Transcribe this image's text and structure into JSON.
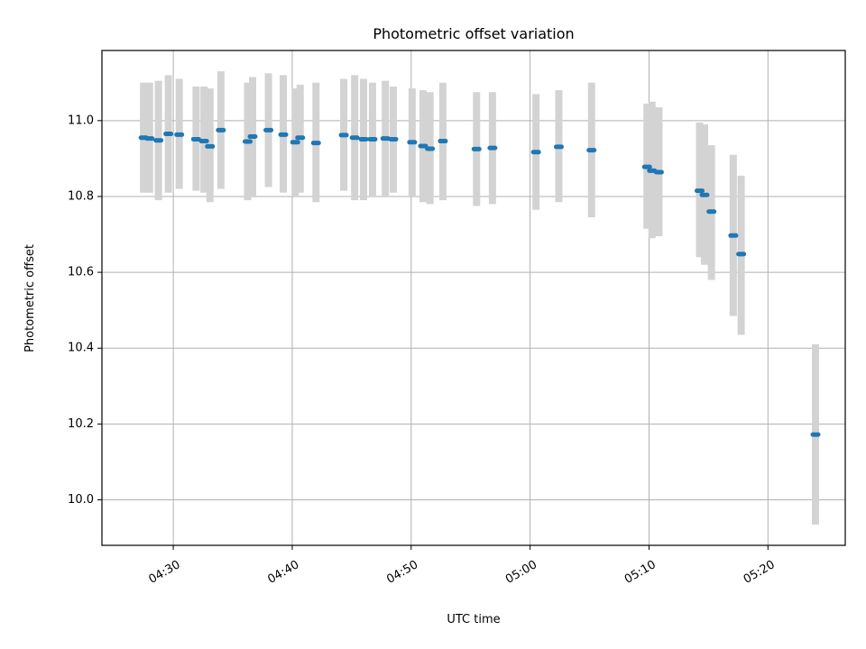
{
  "chart_data": {
    "type": "scatter",
    "title": "Photometric offset variation",
    "xlabel": "UTC time",
    "ylabel": "Photometric offset",
    "xlim": [
      "04:24:00",
      "05:26:30"
    ],
    "ylim": [
      9.88,
      11.185
    ],
    "grid": true,
    "x_ticks": [
      "04:30",
      "04:40",
      "04:50",
      "05:00",
      "05:10",
      "05:20"
    ],
    "y_ticks": [
      "10.0",
      "10.2",
      "10.4",
      "10.6",
      "10.8",
      "11.0"
    ],
    "marker_color": "#1f77b4",
    "errorbar_color": "#d3d3d3",
    "points": [
      {
        "time": "04:27:30",
        "offset": 10.955,
        "err_low": 10.81,
        "err_high": 11.1
      },
      {
        "time": "04:28:00",
        "offset": 10.953,
        "err_low": 10.81,
        "err_high": 11.1
      },
      {
        "time": "04:28:45",
        "offset": 10.948,
        "err_low": 10.79,
        "err_high": 11.105
      },
      {
        "time": "04:29:35",
        "offset": 10.965,
        "err_low": 10.81,
        "err_high": 11.12
      },
      {
        "time": "04:30:30",
        "offset": 10.963,
        "err_low": 10.82,
        "err_high": 11.11
      },
      {
        "time": "04:31:55",
        "offset": 10.951,
        "err_low": 10.815,
        "err_high": 11.09
      },
      {
        "time": "04:32:35",
        "offset": 10.946,
        "err_low": 10.81,
        "err_high": 11.09
      },
      {
        "time": "04:33:05",
        "offset": 10.932,
        "err_low": 10.785,
        "err_high": 11.085
      },
      {
        "time": "04:34:00",
        "offset": 10.975,
        "err_low": 10.82,
        "err_high": 11.13
      },
      {
        "time": "04:36:15",
        "offset": 10.945,
        "err_low": 10.79,
        "err_high": 11.1
      },
      {
        "time": "04:36:40",
        "offset": 10.958,
        "err_low": 10.8,
        "err_high": 11.115
      },
      {
        "time": "04:38:00",
        "offset": 10.975,
        "err_low": 10.825,
        "err_high": 11.125
      },
      {
        "time": "04:39:15",
        "offset": 10.963,
        "err_low": 10.81,
        "err_high": 11.12
      },
      {
        "time": "04:40:15",
        "offset": 10.943,
        "err_low": 10.8,
        "err_high": 11.085
      },
      {
        "time": "04:40:40",
        "offset": 10.955,
        "err_low": 10.81,
        "err_high": 11.095
      },
      {
        "time": "04:42:00",
        "offset": 10.941,
        "err_low": 10.785,
        "err_high": 11.1
      },
      {
        "time": "04:44:20",
        "offset": 10.962,
        "err_low": 10.815,
        "err_high": 11.11
      },
      {
        "time": "04:45:15",
        "offset": 10.955,
        "err_low": 10.79,
        "err_high": 11.12
      },
      {
        "time": "04:46:00",
        "offset": 10.951,
        "err_low": 10.79,
        "err_high": 11.11
      },
      {
        "time": "04:46:45",
        "offset": 10.951,
        "err_low": 10.8,
        "err_high": 11.1
      },
      {
        "time": "04:47:50",
        "offset": 10.953,
        "err_low": 10.8,
        "err_high": 11.105
      },
      {
        "time": "04:48:30",
        "offset": 10.951,
        "err_low": 10.81,
        "err_high": 11.09
      },
      {
        "time": "04:50:05",
        "offset": 10.943,
        "err_low": 10.8,
        "err_high": 11.085
      },
      {
        "time": "04:51:00",
        "offset": 10.933,
        "err_low": 10.785,
        "err_high": 11.08
      },
      {
        "time": "04:51:35",
        "offset": 10.926,
        "err_low": 10.78,
        "err_high": 11.075
      },
      {
        "time": "04:52:40",
        "offset": 10.946,
        "err_low": 10.79,
        "err_high": 11.1
      },
      {
        "time": "04:55:30",
        "offset": 10.925,
        "err_low": 10.775,
        "err_high": 11.075
      },
      {
        "time": "04:56:50",
        "offset": 10.928,
        "err_low": 10.78,
        "err_high": 11.075
      },
      {
        "time": "05:00:30",
        "offset": 10.917,
        "err_low": 10.765,
        "err_high": 11.07
      },
      {
        "time": "05:02:25",
        "offset": 10.931,
        "err_low": 10.785,
        "err_high": 11.08
      },
      {
        "time": "05:05:10",
        "offset": 10.922,
        "err_low": 10.745,
        "err_high": 11.1
      },
      {
        "time": "05:09:50",
        "offset": 10.878,
        "err_low": 10.715,
        "err_high": 11.045
      },
      {
        "time": "05:10:15",
        "offset": 10.868,
        "err_low": 10.69,
        "err_high": 11.05
      },
      {
        "time": "05:10:50",
        "offset": 10.864,
        "err_low": 10.695,
        "err_high": 11.035
      },
      {
        "time": "05:14:15",
        "offset": 10.815,
        "err_low": 10.64,
        "err_high": 10.995
      },
      {
        "time": "05:14:40",
        "offset": 10.804,
        "err_low": 10.62,
        "err_high": 10.99
      },
      {
        "time": "05:15:15",
        "offset": 10.76,
        "err_low": 10.58,
        "err_high": 10.935
      },
      {
        "time": "05:17:05",
        "offset": 10.697,
        "err_low": 10.485,
        "err_high": 10.91
      },
      {
        "time": "05:17:45",
        "offset": 10.648,
        "err_low": 10.435,
        "err_high": 10.855
      },
      {
        "time": "05:24:00",
        "offset": 10.172,
        "err_low": 9.935,
        "err_high": 10.41
      }
    ]
  }
}
